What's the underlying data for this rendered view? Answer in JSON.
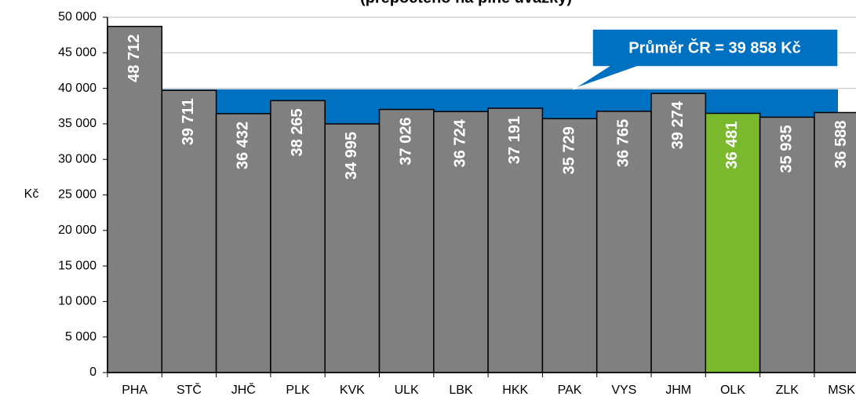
{
  "chart_data": {
    "type": "bar",
    "title": "(přepočteno na plné úvazky)",
    "y_label": "Kč",
    "categories": [
      "PHA",
      "STČ",
      "JHČ",
      "PLK",
      "KVK",
      "ULK",
      "LBK",
      "HKK",
      "PAK",
      "VYS",
      "JHM",
      "OLK",
      "ZLK",
      "MSK"
    ],
    "values": [
      48712,
      39711,
      36432,
      38265,
      34995,
      37026,
      36724,
      37191,
      35729,
      36765,
      39274,
      36481,
      35935,
      36588
    ],
    "value_labels": [
      "48 712",
      "39 711",
      "36 432",
      "38 265",
      "34 995",
      "37 026",
      "36 724",
      "37 191",
      "35 729",
      "36 765",
      "39 274",
      "36 481",
      "35 935",
      "36 588"
    ],
    "colors": [
      "#808080",
      "#808080",
      "#808080",
      "#808080",
      "#808080",
      "#808080",
      "#808080",
      "#808080",
      "#808080",
      "#808080",
      "#808080",
      "#7ab92e",
      "#808080",
      "#808080"
    ],
    "average": {
      "value": 39858,
      "label": "Průměr ČR = 39 858 Kč",
      "color": "#0070c0"
    },
    "ylim": [
      0,
      50000
    ],
    "yticks": [
      0,
      {
        "value": 5000,
        "label": "5 000"
      },
      {
        "value": 10000,
        "label": "10 000"
      },
      {
        "value": 15000,
        "label": "15 000"
      },
      {
        "value": 20000,
        "label": "20 000"
      },
      {
        "value": 25000,
        "label": "25 000"
      },
      {
        "value": 30000,
        "label": "30 000"
      },
      {
        "value": 35000,
        "label": "35 000"
      },
      {
        "value": 40000,
        "label": "40 000"
      },
      {
        "value": 45000,
        "label": "45 000"
      },
      {
        "value": 50000,
        "label": "50 000"
      }
    ],
    "grid": true
  }
}
